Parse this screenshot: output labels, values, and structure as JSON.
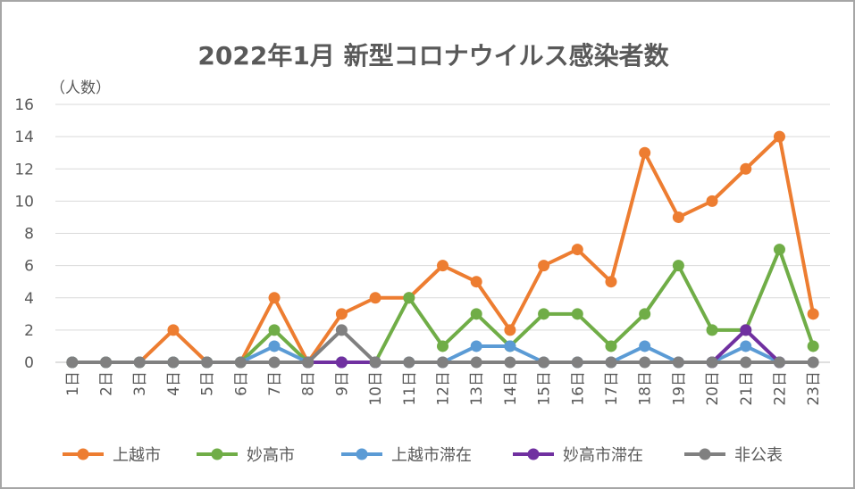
{
  "chart_data": {
    "type": "line",
    "title": "2022年1月 新型コロナウイルス感染者数",
    "ylabel": "（人数）",
    "ylim": [
      0,
      16
    ],
    "yticks": [
      "0",
      "2",
      "4",
      "6",
      "8",
      "10",
      "12",
      "14",
      "16"
    ],
    "grid": true,
    "legend_position": "bottom",
    "categories": [
      "1日",
      "2日",
      "3日",
      "4日",
      "5日",
      "6日",
      "7日",
      "8日",
      "9日",
      "10日",
      "11日",
      "12日",
      "13日",
      "14日",
      "15日",
      "16日",
      "17日",
      "18日",
      "19日",
      "20日",
      "21日",
      "22日",
      "23日"
    ],
    "series": [
      {
        "name": "上越市",
        "color": "#ed7d31",
        "values": [
          0,
          0,
          0,
          2,
          0,
          0,
          4,
          0,
          3,
          4,
          4,
          6,
          5,
          2,
          6,
          7,
          5,
          13,
          9,
          10,
          12,
          14,
          3
        ]
      },
      {
        "name": "妙高市",
        "color": "#70ad47",
        "values": [
          0,
          0,
          0,
          0,
          0,
          0,
          2,
          0,
          0,
          0,
          4,
          1,
          3,
          1,
          3,
          3,
          1,
          3,
          6,
          2,
          2,
          7,
          1
        ]
      },
      {
        "name": "上越市滞在",
        "color": "#5b9bd5",
        "values": [
          0,
          0,
          0,
          0,
          0,
          0,
          1,
          0,
          0,
          0,
          0,
          0,
          1,
          1,
          0,
          0,
          0,
          1,
          0,
          0,
          1,
          0,
          null
        ]
      },
      {
        "name": "妙高市滞在",
        "color": "#7030a0",
        "values": [
          null,
          null,
          null,
          null,
          null,
          null,
          null,
          0,
          0,
          0,
          null,
          null,
          null,
          null,
          null,
          null,
          null,
          null,
          null,
          0,
          2,
          0,
          null
        ]
      },
      {
        "name": "非公表",
        "color": "#808080",
        "values": [
          0,
          0,
          0,
          0,
          0,
          0,
          0,
          0,
          2,
          0,
          0,
          0,
          0,
          0,
          0,
          0,
          0,
          0,
          0,
          0,
          0,
          0,
          0
        ]
      }
    ]
  }
}
